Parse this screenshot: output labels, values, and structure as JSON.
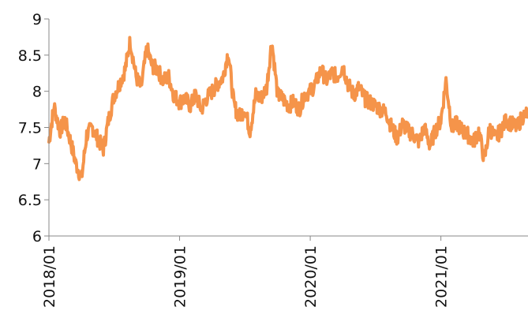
{
  "chart_data": {
    "type": "line",
    "title": "",
    "xlabel": "",
    "ylabel": "",
    "ylim": [
      6,
      9
    ],
    "yticks": [
      "6",
      "6.5",
      "7",
      "7.5",
      "8",
      "8.5",
      "9"
    ],
    "xlim": [
      "2018-01",
      "2021-09"
    ],
    "xticks": [
      "2018/01",
      "2019/01",
      "2020/01",
      "2021/01"
    ],
    "grid": false,
    "legend": "none",
    "series": [
      {
        "color": "#f5944a",
        "x": [
          "2018-01",
          "2018-01-15",
          "2018-02",
          "2018-02-15",
          "2018-03",
          "2018-03-15",
          "2018-04",
          "2018-04-15",
          "2018-05",
          "2018-05-15",
          "2018-06",
          "2018-06-15",
          "2018-07",
          "2018-07-15",
          "2018-08",
          "2018-08-15",
          "2018-09",
          "2018-09-15",
          "2018-10",
          "2018-10-15",
          "2018-11",
          "2018-11-15",
          "2018-12",
          "2018-12-15",
          "2019-01",
          "2019-01-15",
          "2019-02",
          "2019-02-15",
          "2019-03",
          "2019-03-15",
          "2019-04",
          "2019-04-15",
          "2019-05",
          "2019-05-15",
          "2019-06",
          "2019-06-15",
          "2019-07",
          "2019-07-15",
          "2019-08",
          "2019-08-15",
          "2019-09",
          "2019-09-15",
          "2019-10",
          "2019-10-15",
          "2019-11",
          "2019-11-15",
          "2019-12",
          "2019-12-15",
          "2020-01",
          "2020-01-15",
          "2020-02",
          "2020-02-15",
          "2020-03",
          "2020-03-15",
          "2020-04",
          "2020-04-15",
          "2020-05",
          "2020-05-15",
          "2020-06",
          "2020-06-15",
          "2020-07",
          "2020-07-15",
          "2020-08",
          "2020-08-15",
          "2020-09",
          "2020-09-15",
          "2020-10",
          "2020-10-15",
          "2020-11",
          "2020-11-15",
          "2020-12",
          "2020-12-15",
          "2021-01",
          "2021-01-15",
          "2021-02",
          "2021-02-15",
          "2021-03",
          "2021-03-15",
          "2021-04",
          "2021-04-15",
          "2021-05",
          "2021-05-15",
          "2021-06",
          "2021-06-15",
          "2021-07",
          "2021-07-15",
          "2021-08",
          "2021-08-15",
          "2021-09"
        ],
        "values": [
          7.3,
          7.8,
          7.45,
          7.6,
          7.3,
          7.0,
          6.8,
          7.4,
          7.5,
          7.35,
          7.2,
          7.6,
          7.95,
          8.1,
          8.3,
          8.7,
          8.2,
          8.05,
          8.6,
          8.35,
          8.3,
          8.15,
          8.2,
          7.95,
          7.85,
          7.9,
          7.8,
          7.95,
          7.75,
          7.9,
          8.0,
          8.1,
          8.2,
          8.55,
          7.8,
          7.65,
          7.75,
          7.45,
          7.95,
          7.9,
          8.05,
          8.7,
          7.95,
          7.9,
          7.8,
          7.85,
          7.75,
          7.95,
          8.0,
          8.1,
          8.3,
          8.15,
          8.25,
          8.2,
          8.35,
          8.1,
          7.95,
          8.05,
          7.9,
          7.85,
          7.8,
          7.75,
          7.7,
          7.5,
          7.35,
          7.55,
          7.45,
          7.4,
          7.3,
          7.5,
          7.25,
          7.45,
          7.6,
          8.15,
          7.5,
          7.55,
          7.45,
          7.4,
          7.3,
          7.45,
          7.05,
          7.5,
          7.35,
          7.45,
          7.6,
          7.55,
          7.5,
          7.65,
          7.7
        ]
      }
    ]
  }
}
